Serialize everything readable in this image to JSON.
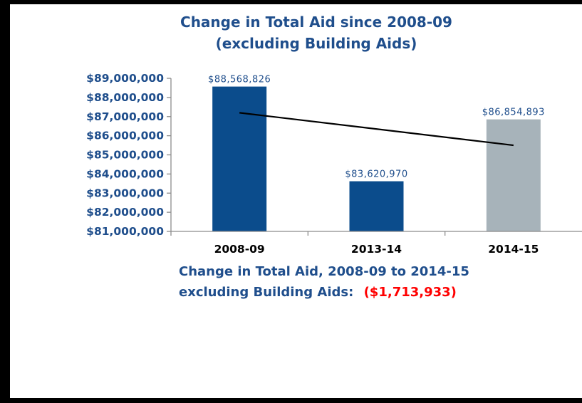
{
  "chart_data": {
    "type": "bar",
    "title": "Change in Total Aid since 2008-09",
    "subtitle": "(excluding Building Aids)",
    "categories": [
      "2008-09",
      "2013-14",
      "2014-15"
    ],
    "values": [
      88568826,
      83620970,
      86854893
    ],
    "data_labels": [
      "$88,568,826",
      "$83,620,970",
      "$86,854,893"
    ],
    "bar_colors": [
      "#0b4c8c",
      "#0b4c8c",
      "#a7b3ba"
    ],
    "yticks": [
      81000000,
      82000000,
      83000000,
      84000000,
      85000000,
      86000000,
      87000000,
      88000000,
      89000000
    ],
    "ytick_labels": [
      "$81,000,000",
      "$82,000,000",
      "$83,000,000",
      "$84,000,000",
      "$85,000,000",
      "$86,000,000",
      "$87,000,000",
      "$88,000,000",
      "$89,000,000"
    ],
    "ylim": [
      81000000,
      89000000
    ],
    "trendline": {
      "x_start": "2008-09",
      "x_end": "2014-15",
      "y_start": 87200000,
      "y_end": 85500000,
      "color": "#000000"
    },
    "grid": false,
    "legend": "none"
  },
  "summary": {
    "line1": "Change in Total Aid, 2008-09 to 2014-15",
    "line2_prefix": "excluding Building Aids:",
    "line2_value": "($1,713,933)"
  },
  "colors": {
    "title": "#1f4e8c",
    "axis_text": "#1f4e8c",
    "category_text": "#000000",
    "summary_text": "#1f4e8c",
    "summary_value": "#ff0000",
    "axis_line": "#8c8c8c"
  }
}
